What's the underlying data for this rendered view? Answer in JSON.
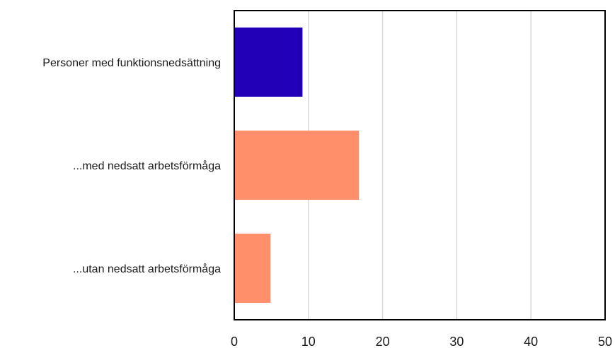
{
  "chart_data": {
    "type": "bar",
    "orientation": "horizontal",
    "title": "",
    "xlabel": "",
    "ylabel": "",
    "categories": [
      "Personer med funktionsnedsättning",
      "...med nedsatt arbetsförmåga",
      "...utan nedsatt arbetsförmåga"
    ],
    "values": [
      9.2,
      16.8,
      4.9
    ],
    "bar_colors": [
      "#2200b8",
      "#ff8f6b",
      "#ff8f6b"
    ],
    "xlim": [
      0,
      50
    ],
    "xticks": [
      0,
      10,
      20,
      30,
      40,
      50
    ],
    "grid": true,
    "gridline_color": "#d9d9d9",
    "axis_color": "#000000"
  }
}
